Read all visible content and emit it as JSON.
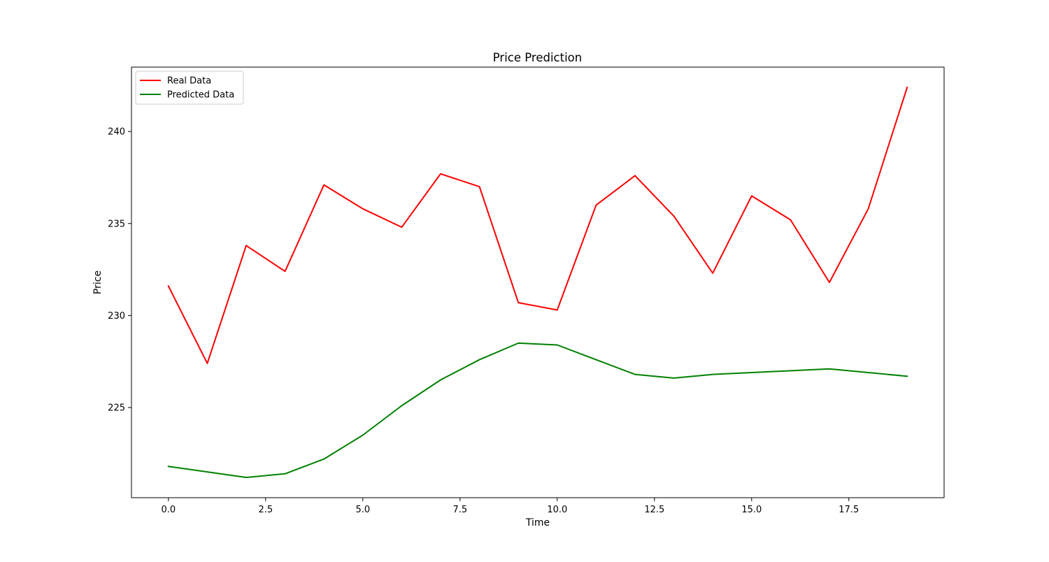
{
  "chart_data": {
    "type": "line",
    "title": "Price Prediction",
    "xlabel": "Time",
    "ylabel": "Price",
    "xlim": [
      -0.95,
      19.95
    ],
    "ylim": [
      220.1,
      243.5
    ],
    "xticks": [
      0.0,
      2.5,
      5.0,
      7.5,
      10.0,
      12.5,
      15.0,
      17.5
    ],
    "xtick_labels": [
      "0.0",
      "2.5",
      "5.0",
      "7.5",
      "10.0",
      "12.5",
      "15.0",
      "17.5"
    ],
    "yticks": [
      225,
      230,
      235,
      240
    ],
    "ytick_labels": [
      "225",
      "230",
      "235",
      "240"
    ],
    "grid": false,
    "legend_position": "top-left",
    "x": [
      0,
      1,
      2,
      3,
      4,
      5,
      6,
      7,
      8,
      9,
      10,
      11,
      12,
      13,
      14,
      15,
      16,
      17,
      18,
      19
    ],
    "series": [
      {
        "name": "Real Data",
        "color": "#ff0000",
        "values": [
          231.6,
          227.4,
          233.8,
          232.4,
          237.1,
          235.8,
          234.8,
          237.7,
          237.0,
          230.7,
          230.3,
          236.0,
          237.6,
          235.4,
          232.3,
          236.5,
          235.2,
          231.8,
          235.8,
          242.4
        ]
      },
      {
        "name": "Predicted Data",
        "color": "#008000",
        "values": [
          221.8,
          221.5,
          221.2,
          221.4,
          222.2,
          223.5,
          225.1,
          226.5,
          227.6,
          228.5,
          228.4,
          227.6,
          226.8,
          226.6,
          226.8,
          226.9,
          227.0,
          227.1,
          226.9,
          226.7
        ]
      }
    ]
  }
}
